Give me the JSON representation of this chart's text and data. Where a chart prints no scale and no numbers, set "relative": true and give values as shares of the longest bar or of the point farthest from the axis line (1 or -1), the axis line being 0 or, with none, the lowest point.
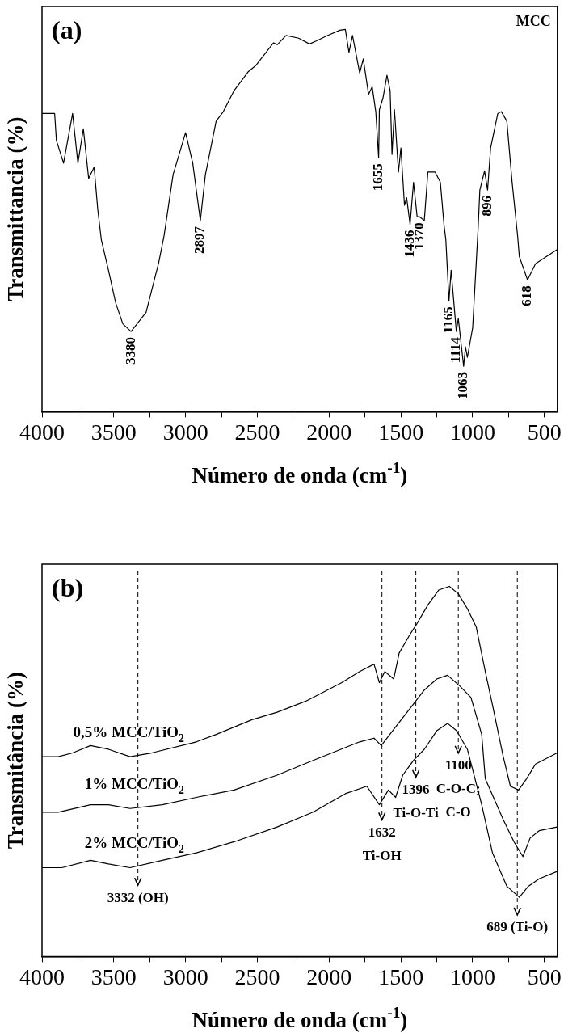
{
  "chart_data": [
    {
      "type": "line",
      "title": "(a)",
      "xlabel": "Número de onda (cm$^{-1}$)",
      "ylabel": "Transmittancia (%)",
      "relative": true,
      "tick_labels": "x",
      "xlim": [
        4000,
        410
      ],
      "xticks": [
        4000,
        {
          "value": 3750,
          "label": null
        },
        3500,
        {
          "value": 3250,
          "label": null
        },
        3000,
        {
          "value": 2750,
          "label": null
        },
        2500,
        {
          "value": 2250,
          "label": null
        },
        2000,
        {
          "value": 1750,
          "label": null
        },
        1500,
        {
          "value": 1250,
          "label": null
        },
        1000,
        {
          "value": 750,
          "label": null
        },
        500
      ],
      "series": [
        {
          "name": "MCC",
          "color": "#000000",
          "x": [
            4000,
            3912,
            3900,
            3850,
            3787,
            3750,
            3712,
            3675,
            3637,
            3612,
            3587,
            3537,
            3487,
            3437,
            3380,
            3275,
            3187,
            3150,
            3087,
            3000,
            2950,
            2897,
            2862,
            2787,
            2737,
            2662,
            2562,
            2512,
            2387,
            2362,
            2300,
            2212,
            2137,
            2087,
            2012,
            1925,
            1887,
            1862,
            1837,
            1787,
            1762,
            1725,
            1700,
            1675,
            1655,
            1650,
            1625,
            1597,
            1575,
            1562,
            1545,
            1517,
            1500,
            1475,
            1460,
            1436,
            1412,
            1387,
            1370,
            1337,
            1312,
            1262,
            1225,
            1200,
            1187,
            1165,
            1150,
            1114,
            1100,
            1063,
            1050,
            1037,
            1000,
            962,
            950,
            917,
            896,
            875,
            825,
            800,
            762,
            725,
            687,
            675,
            618,
            562,
            412
          ],
          "values": [
            0.78,
            0.78,
            0.71,
            0.65,
            0.78,
            0.65,
            0.74,
            0.61,
            0.64,
            0.53,
            0.45,
            0.37,
            0.285,
            0.23,
            0.21,
            0.26,
            0.39,
            0.46,
            0.62,
            0.73,
            0.65,
            0.5,
            0.62,
            0.76,
            0.785,
            0.84,
            0.89,
            0.905,
            0.965,
            0.96,
            0.984,
            0.977,
            0.962,
            0.97,
            0.984,
            0.998,
            1.0,
            0.94,
            0.984,
            0.886,
            0.923,
            0.83,
            0.85,
            0.785,
            0.664,
            0.79,
            0.82,
            0.88,
            0.84,
            0.673,
            0.79,
            0.627,
            0.69,
            0.54,
            0.56,
            0.49,
            0.6,
            0.51,
            0.51,
            0.5,
            0.627,
            0.627,
            0.6,
            0.49,
            0.45,
            0.29,
            0.37,
            0.21,
            0.244,
            0.119,
            0.17,
            0.142,
            0.22,
            0.48,
            0.58,
            0.63,
            0.58,
            0.69,
            0.78,
            0.785,
            0.76,
            0.6,
            0.46,
            0.406,
            0.345,
            0.387,
            0.424
          ]
        }
      ],
      "annotations": [
        {
          "text": "3380",
          "x": 3380,
          "y": 0.21
        },
        {
          "text": "2897",
          "x": 2897,
          "y": 0.5
        },
        {
          "text": "1655",
          "x": 1655,
          "y": 0.664
        },
        {
          "text": "1436",
          "x": 1436,
          "y": 0.49
        },
        {
          "text": "1370",
          "x": 1370,
          "y": 0.51
        },
        {
          "text": "1165",
          "x": 1165,
          "y": 0.29
        },
        {
          "text": "1114",
          "x": 1114,
          "y": 0.21
        },
        {
          "text": "1063",
          "x": 1063,
          "y": 0.119
        },
        {
          "text": "896",
          "x": 896,
          "y": 0.58
        },
        {
          "text": "618",
          "x": 618,
          "y": 0.345
        }
      ]
    },
    {
      "type": "line",
      "title": "(b)",
      "xlabel": "Número de onda (cm$^{-1}$)",
      "ylabel": "Transmitância (%)",
      "relative": true,
      "tick_labels": "x",
      "xlim": [
        4000,
        410
      ],
      "xticks": [
        4000,
        {
          "value": 3750,
          "label": null
        },
        3500,
        {
          "value": 3250,
          "label": null
        },
        3000,
        {
          "value": 2750,
          "label": null
        },
        2500,
        {
          "value": 2250,
          "label": null
        },
        2000,
        {
          "value": 1750,
          "label": null
        },
        1500,
        {
          "value": 1250,
          "label": null
        },
        1000,
        {
          "value": 750,
          "label": null
        },
        500
      ],
      "series": [
        {
          "name": "0,5% MCC/TiO$_{2}$",
          "color": "#000000",
          "x": [
            4000,
            3887,
            3787,
            3662,
            3537,
            3387,
            3237,
            2925,
            2787,
            2537,
            2362,
            2162,
            1912,
            1787,
            1687,
            1650,
            1612,
            1550,
            1512,
            1437,
            1387,
            1312,
            1237,
            1162,
            1100,
            1037,
            975,
            912,
            862,
            787,
            737,
            680,
            625,
            562,
            412
          ],
          "values": [
            0.54,
            0.54,
            0.55,
            0.57,
            0.56,
            0.54,
            0.55,
            0.58,
            0.6,
            0.64,
            0.66,
            0.69,
            0.74,
            0.77,
            0.79,
            0.74,
            0.77,
            0.75,
            0.82,
            0.87,
            0.9,
            0.95,
            0.99,
            1.0,
            0.98,
            0.94,
            0.89,
            0.77,
            0.68,
            0.54,
            0.46,
            0.45,
            0.48,
            0.52,
            0.55
          ]
        },
        {
          "name": "1% MCC/TiO$_{2}$",
          "color": "#000000",
          "x": [
            4000,
            3887,
            3662,
            3537,
            3387,
            3162,
            2925,
            2662,
            2362,
            2112,
            1787,
            1687,
            1637,
            1537,
            1437,
            1337,
            1250,
            1175,
            1087,
            1012,
            937,
            912,
            787,
            712,
            650,
            600,
            537,
            412
          ],
          "values": [
            0.39,
            0.39,
            0.41,
            0.41,
            0.4,
            0.41,
            0.43,
            0.45,
            0.49,
            0.53,
            0.58,
            0.59,
            0.57,
            0.62,
            0.67,
            0.72,
            0.75,
            0.76,
            0.73,
            0.7,
            0.6,
            0.48,
            0.37,
            0.31,
            0.27,
            0.32,
            0.34,
            0.35
          ]
        },
        {
          "name": "2% MCC/TiO$_{2}$",
          "color": "#000000",
          "x": [
            4000,
            3862,
            3662,
            3537,
            3387,
            3162,
            2925,
            2662,
            2362,
            2112,
            1887,
            1737,
            1650,
            1587,
            1537,
            1487,
            1412,
            1337,
            1250,
            1175,
            1112,
            1037,
            937,
            862,
            762,
            675,
            612,
            537,
            412
          ],
          "values": [
            0.24,
            0.24,
            0.26,
            0.25,
            0.24,
            0.26,
            0.28,
            0.31,
            0.35,
            0.39,
            0.44,
            0.46,
            0.41,
            0.45,
            0.43,
            0.49,
            0.53,
            0.56,
            0.61,
            0.63,
            0.61,
            0.56,
            0.41,
            0.28,
            0.19,
            0.16,
            0.19,
            0.21,
            0.23
          ]
        }
      ],
      "ref_lines": [
        {
          "axis": "x",
          "value": 3332,
          "line_style": "dashed",
          "label": "3332 (OH)"
        },
        {
          "axis": "x",
          "value": 1632,
          "line_style": "dashed",
          "label": "1632\nTi-OH"
        },
        {
          "axis": "x",
          "value": 1396,
          "line_style": "dashed",
          "label": "1396\nTi-O-Ti"
        },
        {
          "axis": "x",
          "value": 1100,
          "line_style": "dashed",
          "label": "1100\nC-O-C;\nC-O"
        },
        {
          "axis": "x",
          "value": 689,
          "line_style": "dashed",
          "label": "689 (Ti-O)"
        }
      ]
    }
  ]
}
